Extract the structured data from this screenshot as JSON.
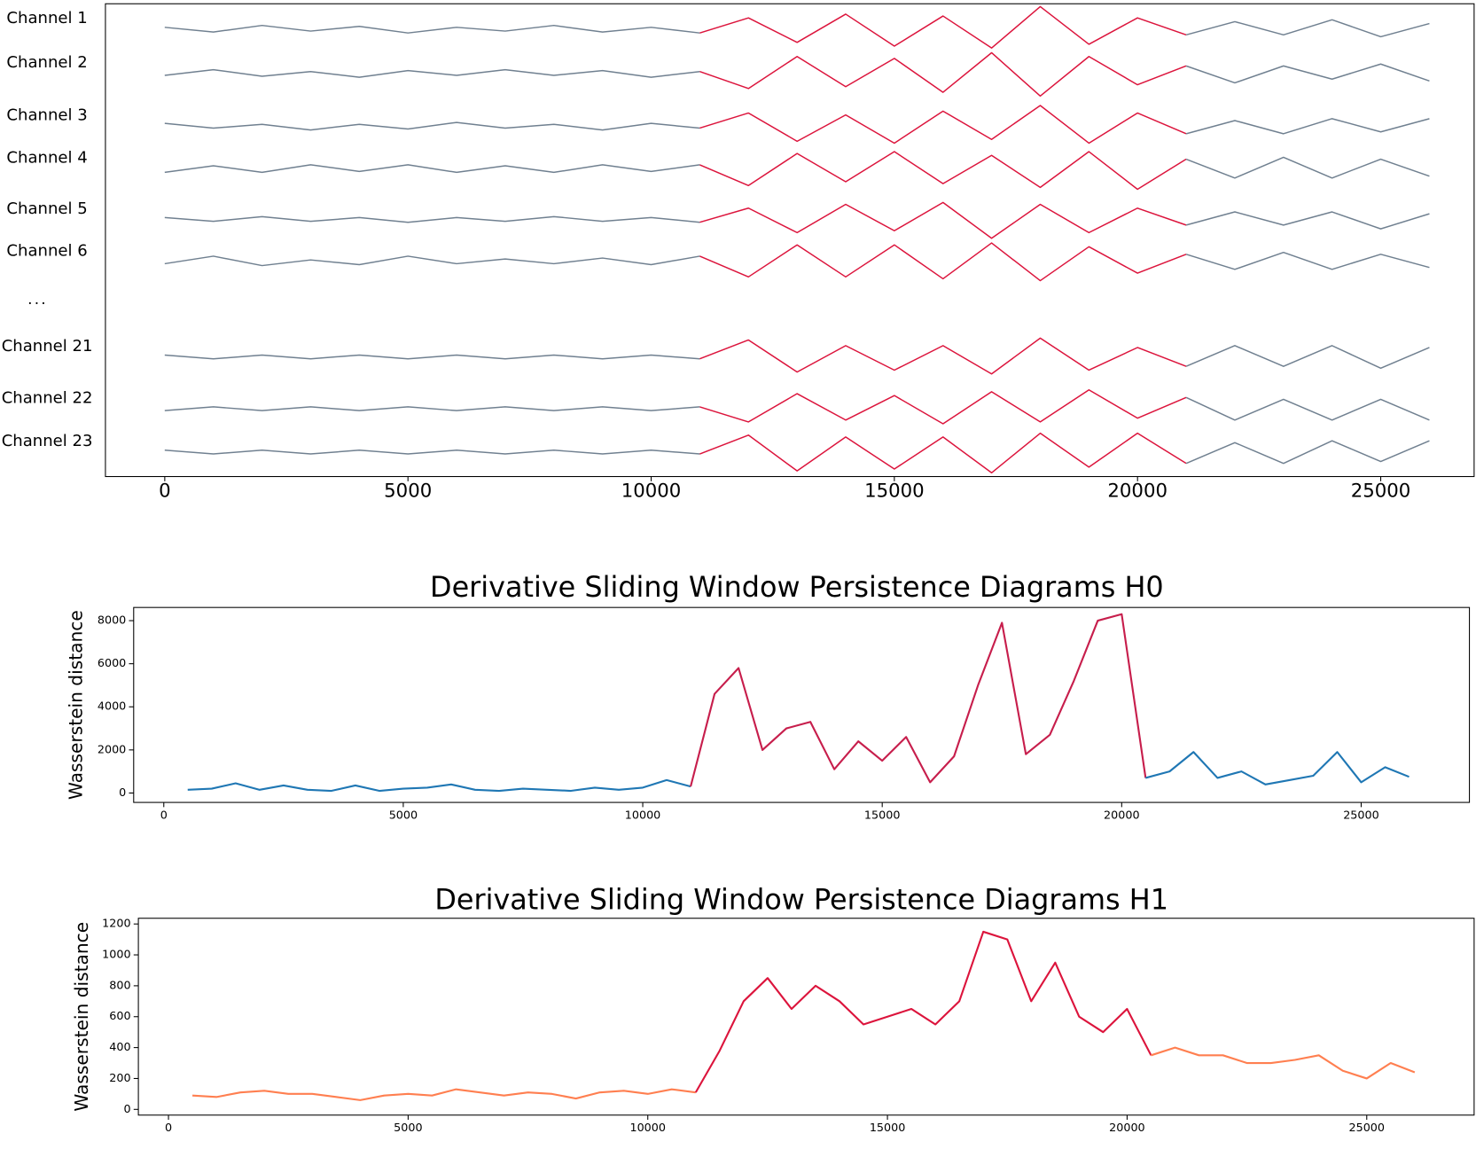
{
  "chart_data": [
    {
      "type": "traces",
      "x": [
        0,
        1000,
        2000,
        3000,
        4000,
        5000,
        6000,
        7000,
        8000,
        9000,
        10000,
        11000,
        12000,
        13000,
        14000,
        15000,
        16000,
        17000,
        18000,
        19000,
        20000,
        21000,
        22000,
        23000,
        24000,
        25000,
        26000
      ],
      "xlim": [
        -1220,
        26920
      ],
      "xticks": [
        0,
        5000,
        10000,
        15000,
        20000,
        25000
      ],
      "color": "#708090",
      "highlight_color": "#dc143c",
      "highlight_range": [
        11300,
        20500
      ],
      "ellipsis": "...",
      "series": [
        {
          "name": "Channel 1",
          "values": [
            0.1,
            -0.15,
            0.2,
            -0.1,
            0.15,
            -0.2,
            0.1,
            -0.1,
            0.2,
            -0.15,
            0.1,
            -0.2,
            0.6,
            -0.7,
            0.8,
            -0.9,
            0.7,
            -1.0,
            1.2,
            -0.8,
            0.6,
            -0.3,
            0.4,
            -0.3,
            0.5,
            -0.4,
            0.3
          ]
        },
        {
          "name": "Channel 2",
          "values": [
            -0.1,
            0.2,
            -0.15,
            0.1,
            -0.2,
            0.15,
            -0.1,
            0.2,
            -0.1,
            0.15,
            -0.2,
            0.1,
            -0.8,
            0.9,
            -0.7,
            0.8,
            -1.0,
            1.1,
            -1.2,
            0.9,
            -0.6,
            0.4,
            -0.5,
            0.4,
            -0.3,
            0.5,
            -0.4
          ]
        },
        {
          "name": "Channel 3",
          "values": [
            0.15,
            -0.1,
            0.1,
            -0.2,
            0.1,
            -0.15,
            0.2,
            -0.1,
            0.1,
            -0.2,
            0.15,
            -0.1,
            0.7,
            -0.8,
            0.6,
            -0.9,
            0.8,
            -0.7,
            1.1,
            -0.9,
            0.7,
            -0.4,
            0.3,
            -0.4,
            0.4,
            -0.3,
            0.4
          ]
        },
        {
          "name": "Channel 4",
          "values": [
            -0.2,
            0.15,
            -0.2,
            0.2,
            -0.15,
            0.2,
            -0.2,
            0.15,
            -0.2,
            0.2,
            -0.15,
            0.2,
            -0.9,
            0.8,
            -0.7,
            0.9,
            -0.8,
            0.7,
            -1.0,
            0.9,
            -1.1,
            0.5,
            -0.5,
            0.6,
            -0.5,
            0.5,
            -0.4
          ]
        },
        {
          "name": "Channel 5",
          "values": [
            0.1,
            -0.1,
            0.15,
            -0.1,
            0.1,
            -0.15,
            0.1,
            -0.1,
            0.15,
            -0.1,
            0.1,
            -0.15,
            0.6,
            -0.7,
            0.8,
            -0.6,
            0.9,
            -1.0,
            0.8,
            -0.7,
            0.6,
            -0.3,
            0.4,
            -0.3,
            0.4,
            -0.5,
            0.3
          ]
        },
        {
          "name": "Channel 6",
          "values": [
            -0.1,
            0.3,
            -0.2,
            0.1,
            -0.15,
            0.3,
            -0.1,
            0.15,
            -0.1,
            0.2,
            -0.15,
            0.3,
            -0.8,
            0.9,
            -0.8,
            0.9,
            -0.9,
            1.0,
            -1.0,
            0.8,
            -0.6,
            0.4,
            -0.4,
            0.5,
            -0.4,
            0.4,
            -0.3
          ]
        },
        {
          "name": "Channel 21",
          "values": [
            0.1,
            -0.1,
            0.1,
            -0.1,
            0.1,
            -0.1,
            0.1,
            -0.1,
            0.1,
            -0.1,
            0.1,
            -0.1,
            0.9,
            -0.8,
            0.6,
            -0.7,
            0.6,
            -0.9,
            1.0,
            -0.7,
            0.5,
            -0.5,
            0.6,
            -0.5,
            0.6,
            -0.6,
            0.5
          ]
        },
        {
          "name": "Channel 22",
          "values": [
            -0.1,
            0.1,
            -0.1,
            0.1,
            -0.1,
            0.1,
            -0.1,
            0.1,
            -0.1,
            0.1,
            -0.1,
            0.1,
            -0.7,
            0.8,
            -0.6,
            0.7,
            -0.8,
            0.9,
            -0.7,
            1.0,
            -0.5,
            0.6,
            -0.6,
            0.5,
            -0.6,
            0.5,
            -0.6
          ]
        },
        {
          "name": "Channel 23",
          "values": [
            0.1,
            -0.1,
            0.1,
            -0.1,
            0.1,
            -0.1,
            0.1,
            -0.1,
            0.1,
            -0.1,
            0.1,
            -0.1,
            0.9,
            -1.0,
            0.8,
            -0.9,
            0.8,
            -1.1,
            1.0,
            -0.8,
            1.0,
            -0.6,
            0.5,
            -0.6,
            0.6,
            -0.5,
            0.6
          ]
        }
      ]
    },
    {
      "type": "line",
      "title": "Derivative Sliding Window Persistence Diagrams H0",
      "y_label": "Wasserstein distance",
      "x": [
        500,
        1000,
        1500,
        2000,
        2500,
        3000,
        3500,
        4000,
        4500,
        5000,
        5500,
        6000,
        6500,
        7000,
        7500,
        8000,
        8500,
        9000,
        9500,
        10000,
        10500,
        11000,
        11500,
        12000,
        12500,
        13000,
        13500,
        14000,
        14500,
        15000,
        15500,
        16000,
        16500,
        17000,
        17500,
        18000,
        18500,
        19000,
        19500,
        20000,
        20500,
        21000,
        21500,
        22000,
        22500,
        23000,
        23500,
        24000,
        24500,
        25000,
        25500,
        26000
      ],
      "values": [
        150,
        200,
        450,
        150,
        350,
        150,
        100,
        350,
        100,
        200,
        250,
        400,
        150,
        100,
        200,
        150,
        100,
        250,
        150,
        250,
        600,
        300,
        4600,
        5800,
        2000,
        3000,
        3300,
        1100,
        2400,
        1500,
        2600,
        500,
        1700,
        5000,
        7900,
        1800,
        2700,
        5200,
        8000,
        8300,
        700,
        1000,
        1900,
        700,
        1000,
        400,
        600,
        800,
        1900,
        500,
        1200,
        750
      ],
      "color": "#1f77b4",
      "highlight_color": "#c71e4c",
      "highlight_range": [
        11200,
        20600
      ],
      "xlim": [
        -629,
        27260
      ],
      "xticks": [
        0,
        5000,
        10000,
        15000,
        20000,
        25000
      ],
      "ylim": [
        -437,
        8612
      ],
      "yticks": [
        0,
        2000,
        4000,
        6000,
        8000
      ]
    },
    {
      "type": "line",
      "title": "Derivative Sliding Window Persistence Diagrams H1",
      "y_label": "Wasserstein distance",
      "x": [
        500,
        1000,
        1500,
        2000,
        2500,
        3000,
        3500,
        4000,
        4500,
        5000,
        5500,
        6000,
        6500,
        7000,
        7500,
        8000,
        8500,
        9000,
        9500,
        10000,
        10500,
        11000,
        11500,
        12000,
        12500,
        13000,
        13500,
        14000,
        14500,
        15000,
        15500,
        16000,
        16500,
        17000,
        17500,
        18000,
        18500,
        19000,
        19500,
        20000,
        20500,
        21000,
        21500,
        22000,
        22500,
        23000,
        23500,
        24000,
        24500,
        25000,
        25500,
        26000
      ],
      "values": [
        90,
        80,
        110,
        120,
        100,
        100,
        80,
        60,
        90,
        100,
        90,
        130,
        110,
        90,
        110,
        100,
        70,
        110,
        120,
        100,
        130,
        110,
        380,
        700,
        850,
        650,
        800,
        700,
        550,
        600,
        650,
        550,
        700,
        1150,
        1100,
        700,
        950,
        600,
        500,
        650,
        350,
        400,
        350,
        350,
        300,
        300,
        320,
        350,
        250,
        200,
        300,
        240
      ],
      "color": "#ff7f50",
      "highlight_color": "#dc143c",
      "highlight_range": [
        11200,
        20600
      ],
      "xlim": [
        -628,
        27240
      ],
      "xticks": [
        0,
        5000,
        10000,
        15000,
        20000,
        25000
      ],
      "ylim": [
        -37,
        1237
      ],
      "yticks": [
        0,
        200,
        400,
        600,
        800,
        1000,
        1200
      ]
    }
  ]
}
